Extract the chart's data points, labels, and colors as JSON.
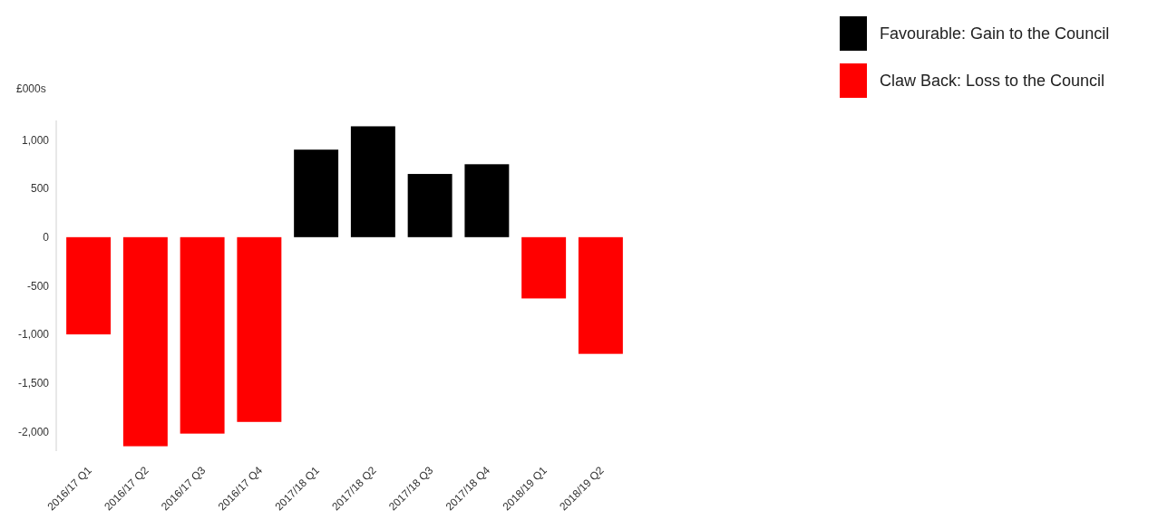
{
  "chart_data": {
    "type": "bar",
    "ylabel": "£000s",
    "categories": [
      "2016/17 Q1",
      "2016/17 Q2",
      "2016/17 Q3",
      "2016/17 Q4",
      "2017/18 Q1",
      "2017/18 Q2",
      "2017/18 Q3",
      "2017/18 Q4",
      "2018/19 Q1",
      "2018/19 Q2"
    ],
    "series": [
      {
        "name": "Favourable: Gain to the Council",
        "color": "#000000",
        "values": [
          null,
          null,
          null,
          null,
          900,
          1140,
          650,
          750,
          null,
          null
        ]
      },
      {
        "name": "Claw Back: Loss to the Council",
        "color": "#ff0000",
        "values": [
          -1000,
          -2150,
          -2020,
          -1900,
          null,
          null,
          null,
          null,
          -630,
          -1200
        ]
      }
    ],
    "ylim": [
      -2200,
      1200
    ],
    "yticks": [
      {
        "value": -2000,
        "label": "-2,000"
      },
      {
        "value": -1500,
        "label": "-1,500"
      },
      {
        "value": -1000,
        "label": "-1,000"
      },
      -500,
      0,
      500,
      {
        "value": 1000,
        "label": "1,000"
      }
    ],
    "grid": false,
    "legend": "top right"
  }
}
